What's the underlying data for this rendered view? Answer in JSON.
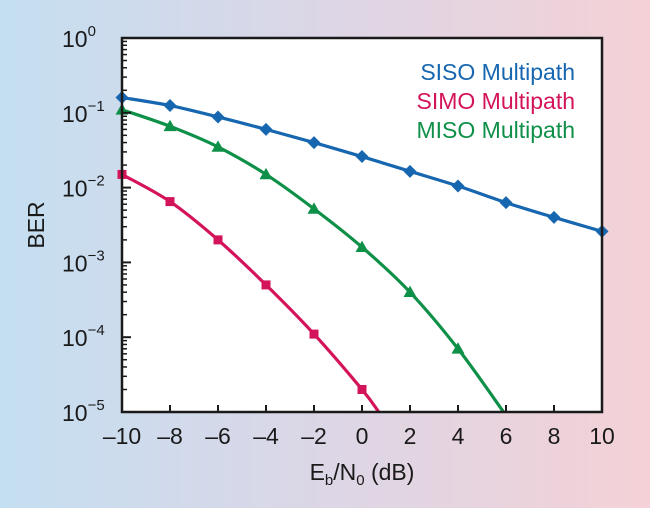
{
  "chart_data": {
    "type": "line",
    "y_scale": "log",
    "xlabel": {
      "base": "E",
      "sub1": "b",
      "mid": "/N",
      "sub2": "0",
      "tail": " (dB)"
    },
    "ylabel": "BER",
    "xlim": [
      -10,
      10
    ],
    "ylim": [
      1e-05,
      1
    ],
    "x_ticks": [
      -10,
      -8,
      -6,
      -4,
      -2,
      0,
      2,
      4,
      6,
      8,
      10
    ],
    "x_tick_labels": [
      "–10",
      "–8",
      "–6",
      "–4",
      "–2",
      "0",
      "2",
      "4",
      "6",
      "8",
      "10"
    ],
    "y_ticks": [
      {
        "value": 1,
        "base": "10",
        "exp": "0"
      },
      {
        "value": 0.1,
        "base": "10",
        "exp": "−1"
      },
      {
        "value": 0.01,
        "base": "10",
        "exp": "−2"
      },
      {
        "value": 0.001,
        "base": "10",
        "exp": "−3"
      },
      {
        "value": 0.0001,
        "base": "10",
        "exp": "−4"
      },
      {
        "value": 1e-05,
        "base": "10",
        "exp": "−5"
      }
    ],
    "grid": false,
    "legend_position": "top-right",
    "series": [
      {
        "name": "SISO Multipath",
        "color": "#1666b0",
        "marker": "diamond",
        "points": [
          {
            "x": -10,
            "y": 0.16
          },
          {
            "x": -8,
            "y": 0.125
          },
          {
            "x": -6,
            "y": 0.088
          },
          {
            "x": -4,
            "y": 0.06
          },
          {
            "x": -2,
            "y": 0.04
          },
          {
            "x": 0,
            "y": 0.026
          },
          {
            "x": 2,
            "y": 0.0165
          },
          {
            "x": 4,
            "y": 0.0105
          },
          {
            "x": 6,
            "y": 0.0063
          },
          {
            "x": 8,
            "y": 0.004
          },
          {
            "x": 10,
            "y": 0.0026
          }
        ],
        "curve": [
          {
            "x": -10,
            "y": 0.16
          },
          {
            "x": -8,
            "y": 0.125
          },
          {
            "x": -6,
            "y": 0.088
          },
          {
            "x": -4,
            "y": 0.06
          },
          {
            "x": -2,
            "y": 0.04
          },
          {
            "x": 0,
            "y": 0.026
          },
          {
            "x": 2,
            "y": 0.0165
          },
          {
            "x": 4,
            "y": 0.0105
          },
          {
            "x": 6,
            "y": 0.0063
          },
          {
            "x": 8,
            "y": 0.004
          },
          {
            "x": 10,
            "y": 0.0026
          }
        ]
      },
      {
        "name": "SIMO Multipath",
        "color": "#d4145a",
        "marker": "square",
        "points": [
          {
            "x": -10,
            "y": 0.015
          },
          {
            "x": -8,
            "y": 0.0065
          },
          {
            "x": -6,
            "y": 0.002
          },
          {
            "x": -4,
            "y": 0.0005
          },
          {
            "x": -2,
            "y": 0.00011
          },
          {
            "x": 0,
            "y": 2e-05
          }
        ],
        "curve": [
          {
            "x": -10,
            "y": 0.015
          },
          {
            "x": -8,
            "y": 0.0065
          },
          {
            "x": -6,
            "y": 0.002
          },
          {
            "x": -4,
            "y": 0.0005
          },
          {
            "x": -2,
            "y": 0.00011
          },
          {
            "x": 0,
            "y": 2e-05
          },
          {
            "x": 0.7,
            "y": 1e-05
          }
        ]
      },
      {
        "name": "MISO Multipath",
        "color": "#0f9048",
        "marker": "triangle",
        "points": [
          {
            "x": -10,
            "y": 0.11
          },
          {
            "x": -8,
            "y": 0.066
          },
          {
            "x": -6,
            "y": 0.035
          },
          {
            "x": -4,
            "y": 0.015
          },
          {
            "x": -2,
            "y": 0.0052
          },
          {
            "x": 0,
            "y": 0.0016
          },
          {
            "x": 2,
            "y": 0.0004
          },
          {
            "x": 4,
            "y": 7e-05
          }
        ],
        "curve": [
          {
            "x": -10,
            "y": 0.11
          },
          {
            "x": -8,
            "y": 0.066
          },
          {
            "x": -6,
            "y": 0.035
          },
          {
            "x": -4,
            "y": 0.015
          },
          {
            "x": -2,
            "y": 0.0052
          },
          {
            "x": 0,
            "y": 0.0016
          },
          {
            "x": 2,
            "y": 0.0004
          },
          {
            "x": 4,
            "y": 7e-05
          },
          {
            "x": 5.9,
            "y": 1e-05
          }
        ]
      }
    ]
  }
}
